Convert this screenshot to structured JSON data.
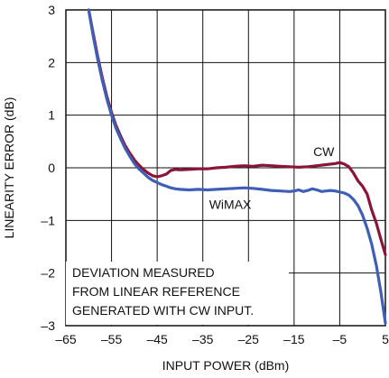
{
  "chart_data": {
    "type": "line",
    "xlabel": "INPUT POWER (dBm)",
    "ylabel": "LINEARITY ERROR (dB)",
    "xlim": [
      -65,
      5
    ],
    "ylim": [
      -3,
      3
    ],
    "x_ticks": [
      "–65",
      "–55",
      "–45",
      "–35",
      "–25",
      "–15",
      "–5",
      "5"
    ],
    "y_ticks": [
      "3",
      "2",
      "1",
      "0",
      "–1",
      "–2",
      "–3"
    ],
    "x_tick_values": [
      -65,
      -55,
      -45,
      -35,
      -25,
      -15,
      -5,
      5
    ],
    "y_tick_values": [
      3,
      2,
      1,
      0,
      -1,
      -2,
      -3
    ],
    "grid": true,
    "annotation": [
      "DEVIATION MEASURED",
      "FROM LINEAR REFERENCE",
      "GENERATED WITH CW INPUT."
    ],
    "series": [
      {
        "name": "CW",
        "color": "#8b1538",
        "label_at": [
          -8.5,
          0.22
        ],
        "points": [
          [
            -60,
            3.0
          ],
          [
            -59,
            2.55
          ],
          [
            -58,
            2.1
          ],
          [
            -57,
            1.7
          ],
          [
            -56,
            1.35
          ],
          [
            -55,
            1.05
          ],
          [
            -54,
            0.8
          ],
          [
            -53,
            0.6
          ],
          [
            -52,
            0.42
          ],
          [
            -51,
            0.28
          ],
          [
            -50,
            0.15
          ],
          [
            -49,
            0.05
          ],
          [
            -48,
            -0.03
          ],
          [
            -47,
            -0.1
          ],
          [
            -46,
            -0.15
          ],
          [
            -45,
            -0.17
          ],
          [
            -44,
            -0.15
          ],
          [
            -43,
            -0.12
          ],
          [
            -42,
            -0.05
          ],
          [
            -41,
            -0.03
          ],
          [
            -40,
            -0.04
          ],
          [
            -38,
            -0.03
          ],
          [
            -36,
            -0.02
          ],
          [
            -34,
            -0.02
          ],
          [
            -32,
            0.0
          ],
          [
            -30,
            0.01
          ],
          [
            -28,
            0.03
          ],
          [
            -26,
            0.04
          ],
          [
            -24,
            0.03
          ],
          [
            -22,
            0.05
          ],
          [
            -20,
            0.04
          ],
          [
            -18,
            0.03
          ],
          [
            -16,
            0.02
          ],
          [
            -14,
            0.01
          ],
          [
            -12,
            0.02
          ],
          [
            -10,
            0.04
          ],
          [
            -8,
            0.06
          ],
          [
            -6,
            0.08
          ],
          [
            -5,
            0.1
          ],
          [
            -4,
            0.07
          ],
          [
            -3,
            0.02
          ],
          [
            -2,
            -0.1
          ],
          [
            -1,
            -0.25
          ],
          [
            0,
            -0.35
          ],
          [
            1,
            -0.5
          ],
          [
            2,
            -0.8
          ],
          [
            3,
            -1.05
          ],
          [
            4,
            -1.35
          ],
          [
            5,
            -1.65
          ]
        ]
      },
      {
        "name": "WiMAX",
        "color": "#3f5eb5",
        "label_at": [
          -29,
          -0.78
        ],
        "points": [
          [
            -60,
            3.0
          ],
          [
            -59,
            2.5
          ],
          [
            -58,
            2.05
          ],
          [
            -57,
            1.65
          ],
          [
            -56,
            1.3
          ],
          [
            -55,
            1.0
          ],
          [
            -54,
            0.75
          ],
          [
            -53,
            0.55
          ],
          [
            -52,
            0.37
          ],
          [
            -51,
            0.22
          ],
          [
            -50,
            0.08
          ],
          [
            -49,
            -0.02
          ],
          [
            -48,
            -0.1
          ],
          [
            -47,
            -0.18
          ],
          [
            -46,
            -0.24
          ],
          [
            -45,
            -0.28
          ],
          [
            -44,
            -0.32
          ],
          [
            -43,
            -0.35
          ],
          [
            -42,
            -0.38
          ],
          [
            -41,
            -0.4
          ],
          [
            -40,
            -0.41
          ],
          [
            -38,
            -0.42
          ],
          [
            -36,
            -0.41
          ],
          [
            -34,
            -0.42
          ],
          [
            -32,
            -0.41
          ],
          [
            -30,
            -0.4
          ],
          [
            -28,
            -0.39
          ],
          [
            -26,
            -0.38
          ],
          [
            -24,
            -0.39
          ],
          [
            -22,
            -0.41
          ],
          [
            -20,
            -0.43
          ],
          [
            -18,
            -0.44
          ],
          [
            -16,
            -0.45
          ],
          [
            -15,
            -0.44
          ],
          [
            -14,
            -0.42
          ],
          [
            -13,
            -0.45
          ],
          [
            -12,
            -0.43
          ],
          [
            -11,
            -0.4
          ],
          [
            -10,
            -0.42
          ],
          [
            -9,
            -0.45
          ],
          [
            -8,
            -0.44
          ],
          [
            -7,
            -0.43
          ],
          [
            -6,
            -0.44
          ],
          [
            -5,
            -0.46
          ],
          [
            -4,
            -0.48
          ],
          [
            -3,
            -0.52
          ],
          [
            -2,
            -0.6
          ],
          [
            -1,
            -0.72
          ],
          [
            0,
            -0.9
          ],
          [
            1,
            -1.15
          ],
          [
            2,
            -1.45
          ],
          [
            3,
            -1.85
          ],
          [
            4,
            -2.35
          ],
          [
            5,
            -2.95
          ]
        ]
      }
    ]
  }
}
